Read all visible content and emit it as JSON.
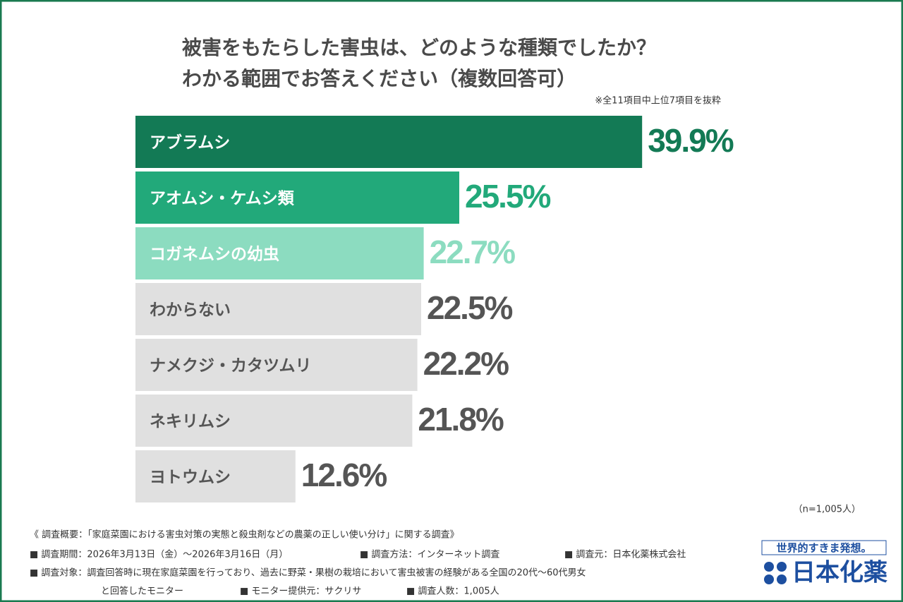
{
  "chart_data": {
    "type": "bar",
    "orientation": "horizontal",
    "title": "被害をもたらした害虫は、どのような種類でしたか？",
    "subtitle": "わかる範囲でお答えください（複数回答可）",
    "note": "※全11項目中上位7項目を抜粋",
    "sample_size": "（n=1,005人）",
    "categories": [
      "アブラムシ",
      "アオムシ・ケムシ類",
      "コガネムシの幼虫",
      "わからない",
      "ナメクジ・カタツムリ",
      "ネキリムシ",
      "ヨトウムシ"
    ],
    "values": [
      39.9,
      25.5,
      22.7,
      22.5,
      22.2,
      21.8,
      12.6
    ],
    "value_labels": [
      "39.9%",
      "25.5%",
      "22.7%",
      "22.5%",
      "22.2%",
      "21.8%",
      "12.6%"
    ],
    "colors": [
      "#137a55",
      "#22a97a",
      "#8cdcc0",
      "#e0e0e0",
      "#e0e0e0",
      "#e0e0e0",
      "#e0e0e0"
    ],
    "label_colors": [
      "#137a55",
      "#22a97a",
      "#8cdcc0",
      "#555555",
      "#555555",
      "#555555",
      "#555555"
    ],
    "category_colors": [
      "#ffffff",
      "#ffffff",
      "#ffffff",
      "#555555",
      "#555555",
      "#555555",
      "#555555"
    ],
    "xlim": [
      0,
      40
    ]
  },
  "footer": {
    "lines": [
      [
        "《 調査概要：「家庭菜園における害虫対策の実態と殺虫剤などの農薬の正しい使い分け」に関する調査》"
      ],
      [
        "■ 調査期間：2026年3月13日（金）～2026年3月16日（月）",
        "■ 調査方法：インターネット調査",
        "■ 調査元：日本化薬株式会社"
      ],
      [
        "■ 調査対象：調査回答時に現在家庭菜園を行っており、過去に野菜・果樹の栽培において害虫被害の経験がある全国の20代～60代男女"
      ],
      [
        "と回答したモニター",
        "■ モニター提供元：サクリサ",
        "■ 調査人数：1,005人"
      ]
    ]
  },
  "logo": {
    "tagline": "世界的すきま発想。",
    "name": "日本化薬"
  }
}
